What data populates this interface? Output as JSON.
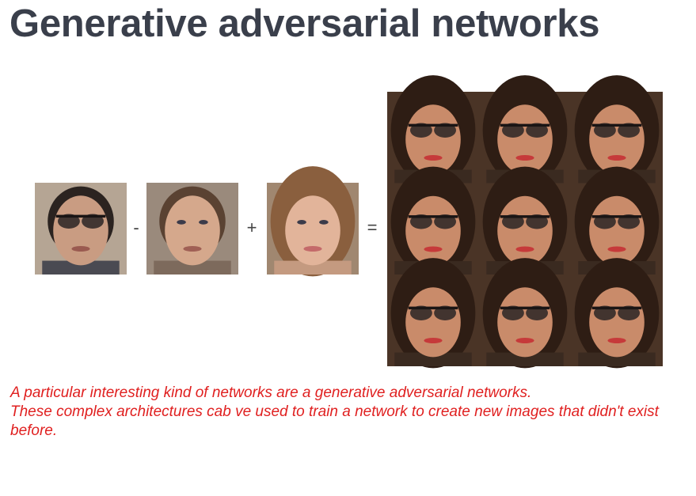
{
  "title": "Generative adversarial networks",
  "equation": {
    "minus": "-",
    "plus": "+",
    "equals": "="
  },
  "caption": {
    "lines": [
      "A particular interesting kind of networks are a generative adversarial networks.",
      "These complex architectures cab ve used to train a network to create new images that didn't exist before."
    ]
  }
}
